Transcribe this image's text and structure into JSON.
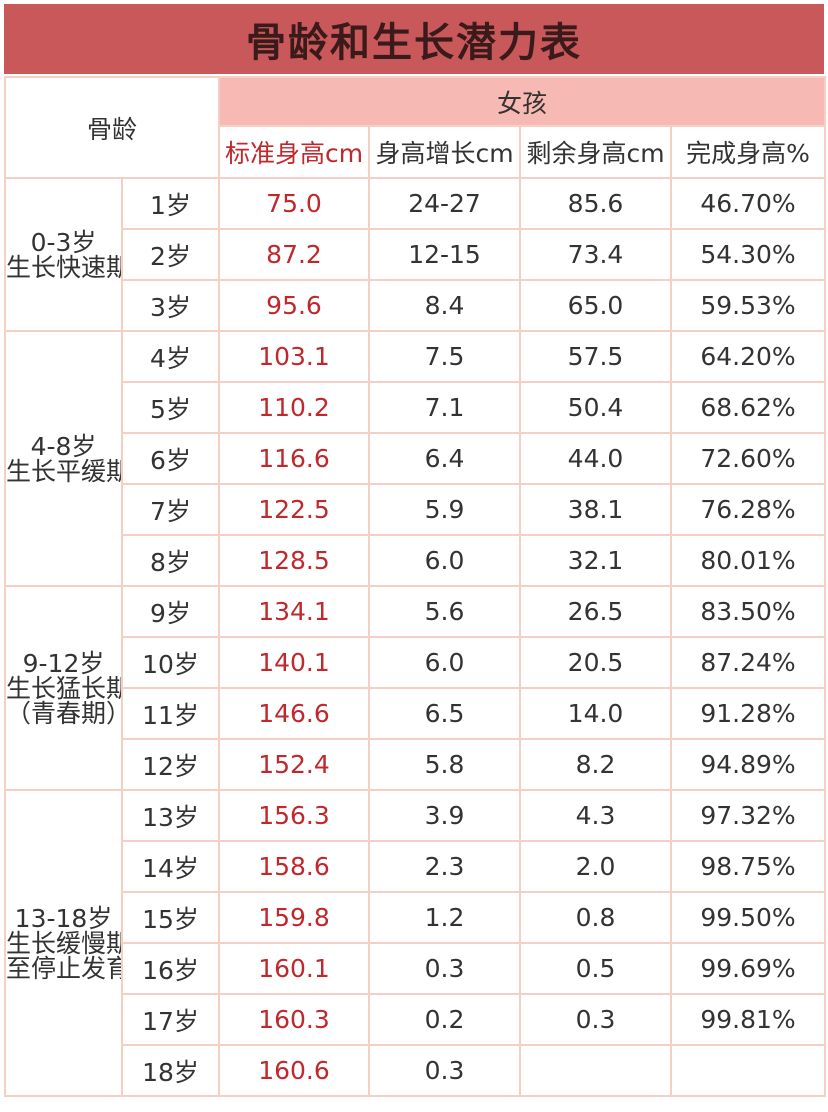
{
  "title": "骨龄和生长潜力表",
  "header": {
    "corner": "骨龄",
    "group": "女孩",
    "columns": [
      "标准身高cm",
      "身高增长cm",
      "剩余身高cm",
      "完成身高%"
    ]
  },
  "colors": {
    "title_bg": "#c9585a",
    "group_bg": "#f7b9b3",
    "accent_text": "#c0282d",
    "border": "#f6cfc4"
  },
  "stages": [
    {
      "range": "0-3岁",
      "name": "生长快速期",
      "note": ""
    },
    {
      "range": "4-8岁",
      "name": "生长平缓期",
      "note": ""
    },
    {
      "range": "9-12岁",
      "name": "生长猛长期",
      "note": "（青春期）"
    },
    {
      "range": "13-18岁",
      "name": "生长缓慢期",
      "note": "至停止发育"
    }
  ],
  "rows": [
    {
      "age": "1岁",
      "std": "75.0",
      "growth": "24-27",
      "remaining": "85.6",
      "complete": "46.70%"
    },
    {
      "age": "2岁",
      "std": "87.2",
      "growth": "12-15",
      "remaining": "73.4",
      "complete": "54.30%"
    },
    {
      "age": "3岁",
      "std": "95.6",
      "growth": "8.4",
      "remaining": "65.0",
      "complete": "59.53%"
    },
    {
      "age": "4岁",
      "std": "103.1",
      "growth": "7.5",
      "remaining": "57.5",
      "complete": "64.20%"
    },
    {
      "age": "5岁",
      "std": "110.2",
      "growth": "7.1",
      "remaining": "50.4",
      "complete": "68.62%"
    },
    {
      "age": "6岁",
      "std": "116.6",
      "growth": "6.4",
      "remaining": "44.0",
      "complete": "72.60%"
    },
    {
      "age": "7岁",
      "std": "122.5",
      "growth": "5.9",
      "remaining": "38.1",
      "complete": "76.28%"
    },
    {
      "age": "8岁",
      "std": "128.5",
      "growth": "6.0",
      "remaining": "32.1",
      "complete": "80.01%"
    },
    {
      "age": "9岁",
      "std": "134.1",
      "growth": "5.6",
      "remaining": "26.5",
      "complete": "83.50%"
    },
    {
      "age": "10岁",
      "std": "140.1",
      "growth": "6.0",
      "remaining": "20.5",
      "complete": "87.24%"
    },
    {
      "age": "11岁",
      "std": "146.6",
      "growth": "6.5",
      "remaining": "14.0",
      "complete": "91.28%"
    },
    {
      "age": "12岁",
      "std": "152.4",
      "growth": "5.8",
      "remaining": "8.2",
      "complete": "94.89%"
    },
    {
      "age": "13岁",
      "std": "156.3",
      "growth": "3.9",
      "remaining": "4.3",
      "complete": "97.32%"
    },
    {
      "age": "14岁",
      "std": "158.6",
      "growth": "2.3",
      "remaining": "2.0",
      "complete": "98.75%"
    },
    {
      "age": "15岁",
      "std": "159.8",
      "growth": "1.2",
      "remaining": "0.8",
      "complete": "99.50%"
    },
    {
      "age": "16岁",
      "std": "160.1",
      "growth": "0.3",
      "remaining": "0.5",
      "complete": "99.69%"
    },
    {
      "age": "17岁",
      "std": "160.3",
      "growth": "0.2",
      "remaining": "0.3",
      "complete": "99.81%"
    },
    {
      "age": "18岁",
      "std": "160.6",
      "growth": "0.3",
      "remaining": "",
      "complete": ""
    }
  ]
}
